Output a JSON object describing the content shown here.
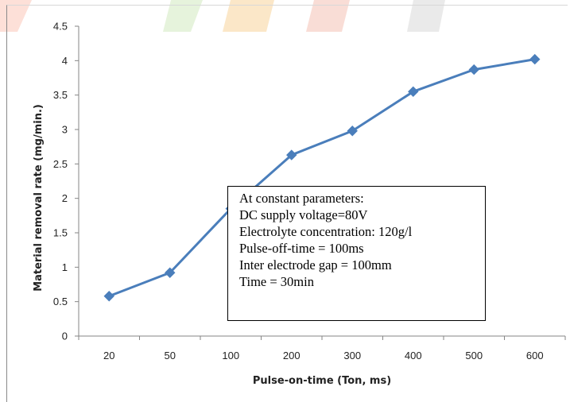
{
  "chart_data": {
    "type": "line",
    "categories": [
      "20",
      "50",
      "100",
      "200",
      "300",
      "400",
      "500",
      "600"
    ],
    "series": [
      {
        "values": [
          0.58,
          0.92,
          1.85,
          2.63,
          2.98,
          3.55,
          3.87,
          4.02
        ]
      }
    ],
    "xlabel": "Pulse-on-time (Ton, ms)",
    "ylabel": "Material removal rate (mg/min.)",
    "ylim": [
      0,
      4.5
    ],
    "yticks": [
      "0",
      "0.5",
      "1",
      "1.5",
      "2",
      "2.5",
      "3",
      "3.5",
      "4",
      "4.5"
    ],
    "grid": false,
    "line_color": "#4a7ebb",
    "annotation": {
      "lines": [
        "At constant parameters:",
        "DC supply voltage=80V",
        "Electrolyte concentration: 120g/l",
        "Pulse-off-time = 100ms",
        "Inter electrode gap = 100mm",
        "Time = 30min"
      ]
    }
  }
}
